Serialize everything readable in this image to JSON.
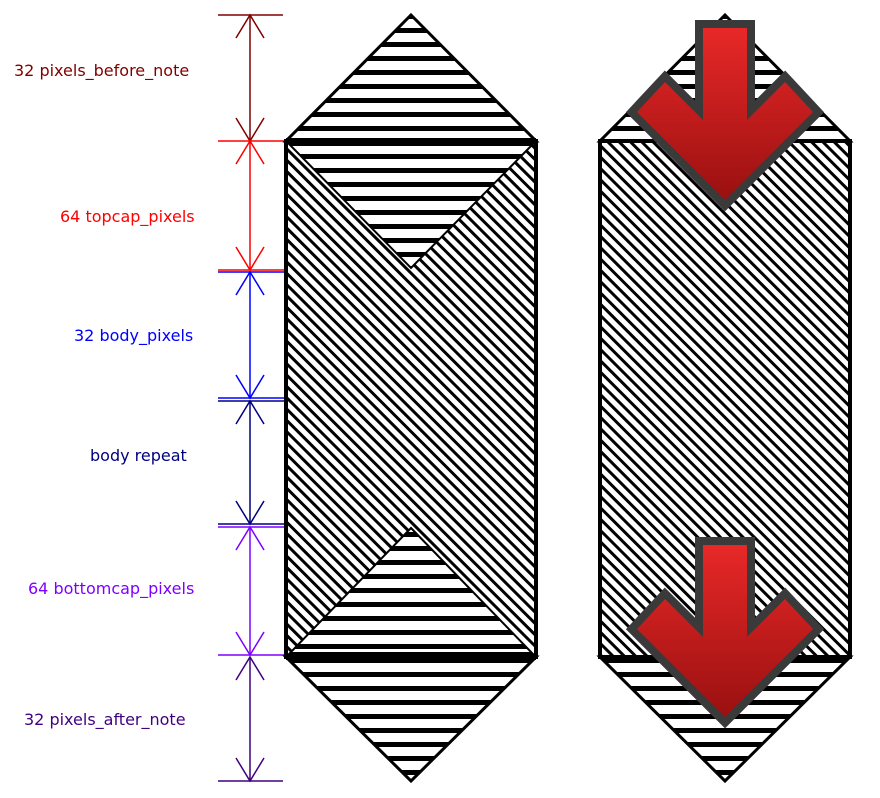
{
  "labels": {
    "before": "32 pixels_before_note",
    "topcap": "64 topcap_pixels",
    "body": "32 body_pixels",
    "repeat": "body repeat",
    "bottomcap": "64 bottomcap_pixels",
    "after": "32 pixels_after_note"
  },
  "colors": {
    "before": "#800000",
    "topcap": "#ff0000",
    "body": "#0000ff",
    "repeat": "#000080",
    "bottomcap": "#8000ff",
    "after": "#400080",
    "arrow_light": "#e82828",
    "arrow_dark": "#9a1010",
    "arrow_outline": "#3a3a3a"
  }
}
